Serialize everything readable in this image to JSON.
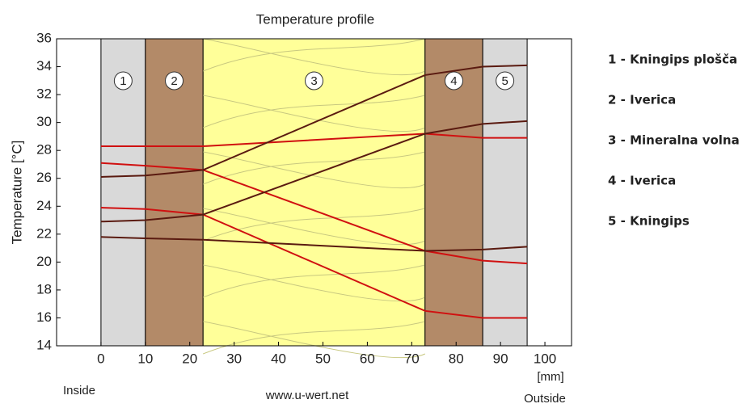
{
  "chart_data": {
    "type": "line",
    "title": "Temperature profile",
    "ylabel": "Temperature [°C]",
    "x_unit": "[mm]",
    "left_note": "Inside",
    "right_note": "Outside",
    "footer": "www.u-wert.net",
    "xlim": [
      -10,
      106
    ],
    "ylim": [
      14,
      36
    ],
    "xticks": [
      0,
      10,
      20,
      30,
      40,
      50,
      60,
      70,
      80,
      90,
      100
    ],
    "yticks": [
      14,
      16,
      18,
      20,
      22,
      24,
      26,
      28,
      30,
      32,
      34,
      36
    ],
    "layers": [
      {
        "label": "1",
        "from": 0,
        "to": 10,
        "color": "#d9d9d9"
      },
      {
        "label": "2",
        "from": 10,
        "to": 23,
        "color": "#b38a68"
      },
      {
        "label": "3",
        "from": 23,
        "to": 73,
        "color": "#ffff99"
      },
      {
        "label": "4",
        "from": 73,
        "to": 86,
        "color": "#b38a68"
      },
      {
        "label": "5",
        "from": 86,
        "to": 96,
        "color": "#d9d9d9"
      }
    ],
    "x": [
      0,
      10,
      23,
      73,
      86,
      96
    ],
    "series": [
      {
        "color": "#d01010",
        "values": [
          28.3,
          28.3,
          28.3,
          29.2,
          28.9,
          28.9
        ]
      },
      {
        "color": "#d01010",
        "values": [
          27.1,
          26.9,
          26.6,
          20.8,
          20.1,
          19.9
        ]
      },
      {
        "color": "#d01010",
        "values": [
          23.9,
          23.8,
          23.4,
          16.5,
          16.0,
          16.0
        ]
      },
      {
        "color": "#5a1a10",
        "values": [
          26.1,
          26.2,
          26.6,
          33.4,
          34.0,
          34.1
        ]
      },
      {
        "color": "#5a1a10",
        "values": [
          22.9,
          23.0,
          23.4,
          29.2,
          29.9,
          30.1
        ]
      },
      {
        "color": "#5a1a10",
        "values": [
          21.8,
          21.7,
          21.6,
          20.8,
          20.9,
          21.1
        ]
      }
    ],
    "legend_items": [
      "1 - Kningips plošča",
      "2 - Iverica",
      "3 - Mineralna volna",
      "4 - Iverica",
      "5 - Kningips"
    ]
  }
}
